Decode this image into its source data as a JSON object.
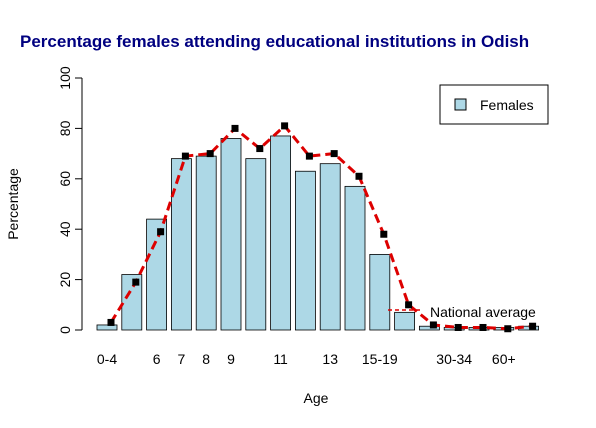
{
  "chart_data": {
    "type": "bar",
    "title": "Percentage females attending educational institutions in Odish",
    "xlabel": "Age",
    "ylabel": "Percentage",
    "categories": [
      "0-4",
      null,
      "6",
      "7",
      "8",
      "9",
      null,
      "11",
      null,
      "13",
      null,
      "15-19",
      null,
      null,
      "30-34",
      null,
      "60+",
      null
    ],
    "series": [
      {
        "name": "Females",
        "type": "bar",
        "color": "#add8e6",
        "values": [
          2,
          22,
          44,
          68,
          69,
          76,
          68,
          77,
          63,
          66,
          57,
          30,
          7,
          1.5,
          1,
          1,
          1,
          1.5
        ]
      },
      {
        "name": "National average",
        "type": "line",
        "color": "#dd0000",
        "values": [
          3,
          19,
          39,
          69,
          70,
          80,
          72,
          81,
          69,
          70,
          61,
          38,
          10,
          2,
          1,
          1,
          0.5,
          1.5
        ]
      }
    ],
    "ylim": [
      0,
      100
    ],
    "yticks": [
      0,
      20,
      40,
      60,
      80,
      100
    ],
    "legend": "top-right"
  }
}
